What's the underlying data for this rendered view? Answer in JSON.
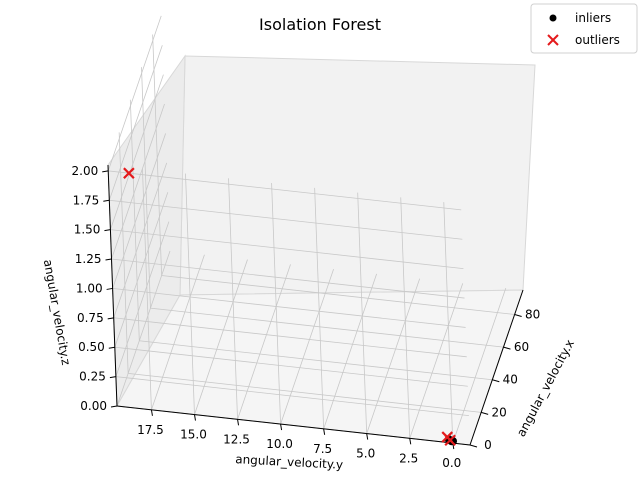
{
  "chart_data": {
    "type": "scatter",
    "title": "Isolation Forest",
    "xlabel": "angular_velocity.x",
    "ylabel": "angular_velocity.y",
    "zlabel": "angular_velocity.z",
    "xlim": [
      0,
      95
    ],
    "ylim": [
      -1,
      19.5
    ],
    "zlim": [
      0,
      2.05
    ],
    "x_ticks": [
      "0",
      "20",
      "40",
      "60",
      "80"
    ],
    "y_ticks": [
      "0.0",
      "2.5",
      "5.0",
      "7.5",
      "10.0",
      "12.5",
      "15.0",
      "17.5"
    ],
    "z_ticks": [
      "0.00",
      "0.25",
      "0.50",
      "0.75",
      "1.00",
      "1.25",
      "1.50",
      "1.75",
      "2.00"
    ],
    "grid": true,
    "legend_position": "top-right",
    "series": [
      {
        "name": "inliers",
        "marker": "circle",
        "color": "#000000",
        "points": [
          {
            "x": 1.0,
            "y": 0.1,
            "z": 0.0
          },
          {
            "x": 1.5,
            "y": 0.2,
            "z": 0.0
          },
          {
            "x": 0.5,
            "y": 0.0,
            "z": 0.01
          },
          {
            "x": 2.0,
            "y": 0.3,
            "z": 0.0
          }
        ]
      },
      {
        "name": "outliers",
        "marker": "x",
        "color": "#e41a1c",
        "points": [
          {
            "x": 1.5,
            "y": 0.2,
            "z": 0.0
          },
          {
            "x": 2.5,
            "y": 0.4,
            "z": 0.01
          },
          {
            "x": 0.0,
            "y": 18.3,
            "z": 2.0
          }
        ]
      }
    ]
  }
}
